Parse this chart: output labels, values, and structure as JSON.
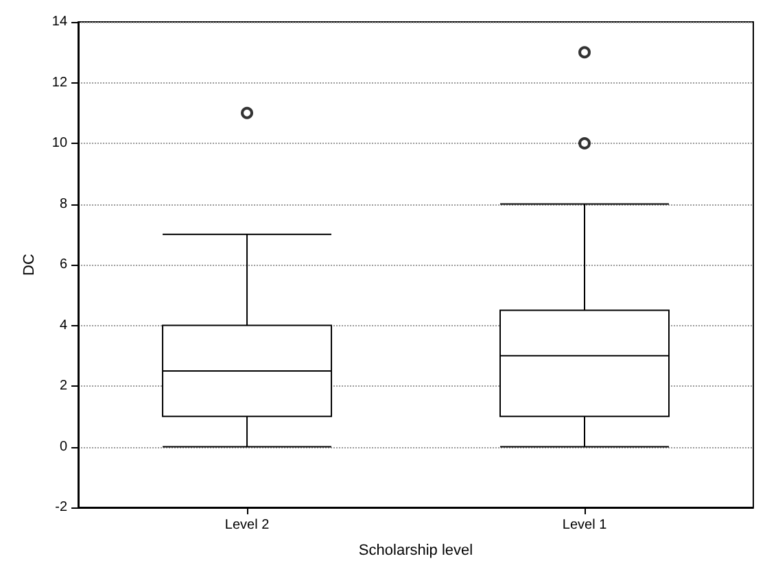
{
  "chart_data": {
    "type": "box",
    "xlabel": "Scholarship level",
    "ylabel": "DC",
    "categories": [
      "Level 2",
      "Level 1"
    ],
    "boxes": [
      {
        "low": 0,
        "q1": 1,
        "median": 2.5,
        "q3": 4,
        "high": 7,
        "outliers": [
          11
        ]
      },
      {
        "low": 0,
        "q1": 1,
        "median": 3,
        "q3": 4.5,
        "high": 8,
        "outliers": [
          10,
          13
        ]
      }
    ],
    "ylim": [
      -2,
      14
    ],
    "yticks": [
      -2,
      0,
      2,
      4,
      6,
      8,
      10,
      12,
      14
    ],
    "grid": "y",
    "marker": "circle"
  }
}
